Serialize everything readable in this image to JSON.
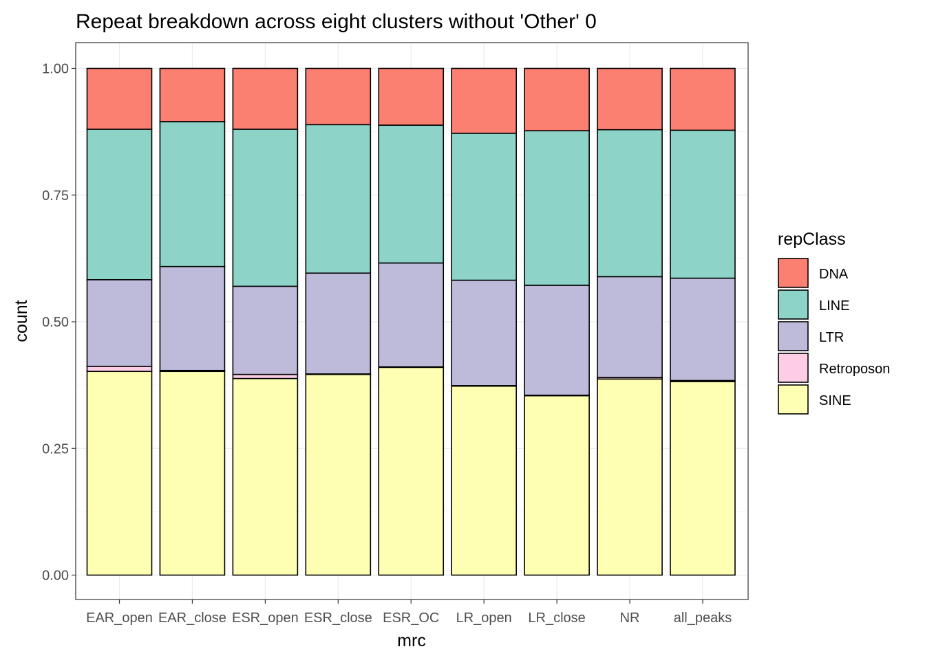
{
  "chart_data": {
    "type": "bar",
    "stacked": true,
    "title": "Repeat breakdown across eight clusters without 'Other' 0",
    "xlabel": "mrc",
    "ylabel": "count",
    "ylim": [
      0,
      1
    ],
    "yticks": [
      "0.00",
      "0.25",
      "0.50",
      "0.75",
      "1.00"
    ],
    "ytick_values": [
      0,
      0.25,
      0.5,
      0.75,
      1.0
    ],
    "categories": [
      "EAR_open",
      "EAR_close",
      "ESR_open",
      "ESR_close",
      "ESR_OC",
      "LR_open",
      "LR_close",
      "NR",
      "all_peaks"
    ],
    "category_labels": [
      "EAR_open",
      "EAR_close",
      "ESR_open",
      "ESR_close",
      "ESR_OC",
      "LR_open",
      "LR_close",
      "NR",
      "all_peaks"
    ],
    "grid": true,
    "legend": {
      "title": "repClass",
      "position": "right"
    },
    "series": [
      {
        "name": "SINE",
        "color": "#FFFFB3",
        "values": [
          0.402,
          0.402,
          0.388,
          0.396,
          0.41,
          0.373,
          0.354,
          0.387,
          0.382
        ]
      },
      {
        "name": "Retroposon",
        "color": "#FCCDE5",
        "values": [
          0.01,
          0.002,
          0.008,
          0.001,
          0.001,
          0.001,
          0.001,
          0.003,
          0.002
        ]
      },
      {
        "name": "LTR",
        "color": "#BEBADA",
        "values": [
          0.171,
          0.205,
          0.174,
          0.199,
          0.205,
          0.208,
          0.217,
          0.199,
          0.202
        ]
      },
      {
        "name": "LINE",
        "color": "#8DD3C7",
        "values": [
          0.297,
          0.286,
          0.31,
          0.293,
          0.272,
          0.29,
          0.305,
          0.29,
          0.292
        ]
      },
      {
        "name": "DNA",
        "color": "#FB8072",
        "values": [
          0.12,
          0.105,
          0.12,
          0.111,
          0.112,
          0.128,
          0.123,
          0.121,
          0.122
        ]
      }
    ],
    "legend_order": [
      "DNA",
      "LINE",
      "LTR",
      "Retroposon",
      "SINE"
    ]
  }
}
